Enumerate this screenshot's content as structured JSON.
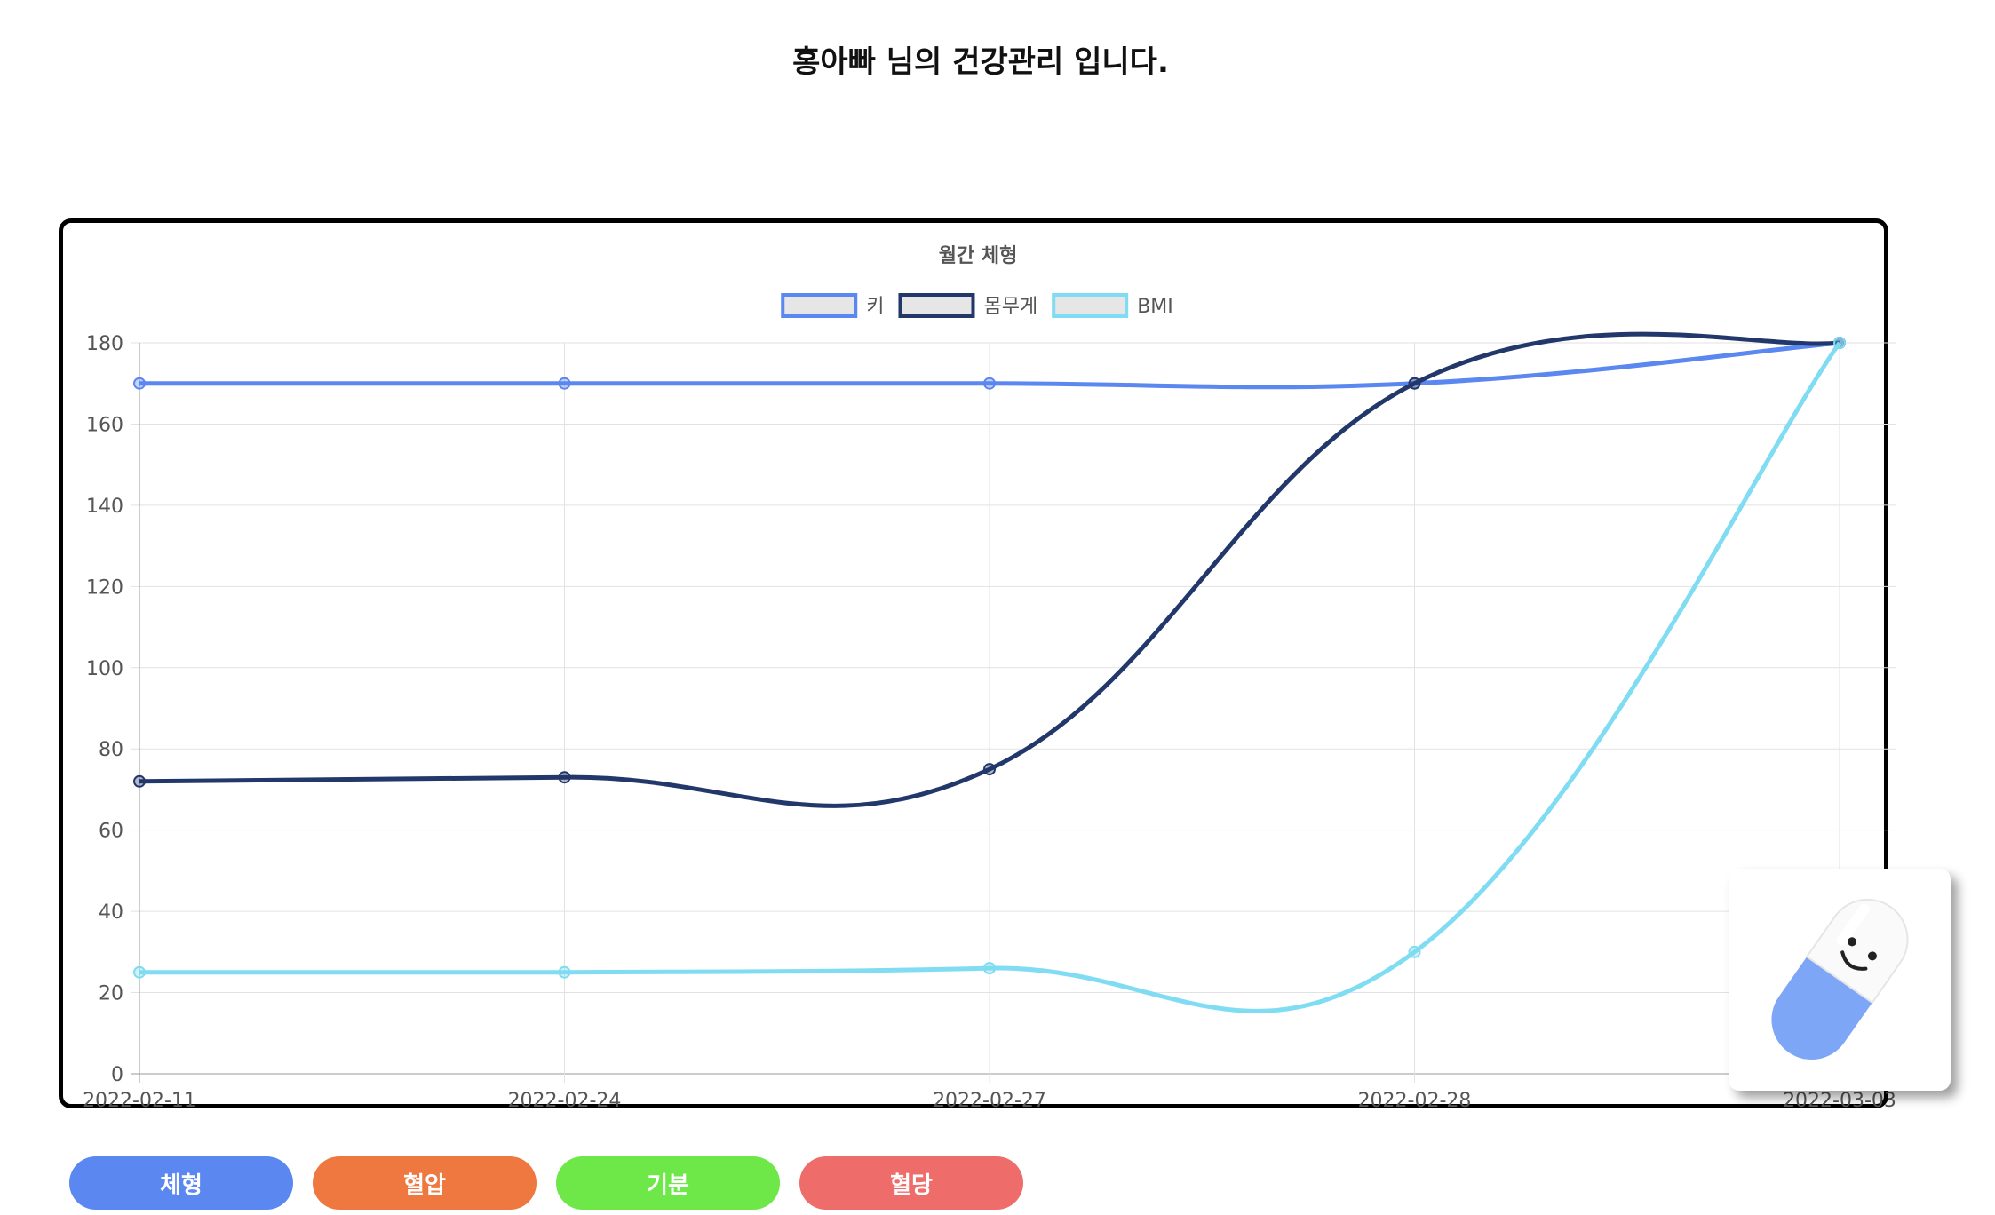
{
  "page": {
    "title": "홍아빠 님의 건강관리 입니다."
  },
  "chart_data": {
    "type": "line",
    "title": "월간 체형",
    "x": [
      "2022-02-11",
      "2022-02-24",
      "2022-02-27",
      "2022-02-28",
      "2022-03-03"
    ],
    "series": [
      {
        "name": "키",
        "values": [
          170,
          170,
          170,
          170,
          180
        ],
        "color": "#5b87f0"
      },
      {
        "name": "몸무게",
        "values": [
          72,
          73,
          75,
          170,
          180
        ],
        "color": "#22376a"
      },
      {
        "name": "BMI",
        "values": [
          25,
          25,
          26,
          30,
          180
        ],
        "color": "#7fdcf2"
      }
    ],
    "ylim": [
      0,
      180
    ],
    "yticks": [
      0,
      20,
      40,
      60,
      80,
      100,
      120,
      140,
      160,
      180
    ],
    "grid": true,
    "legend": "top-center",
    "curve": "smooth"
  },
  "buttons": [
    {
      "label": "체형",
      "color": "#5b87f0"
    },
    {
      "label": "혈압",
      "color": "#ef7840"
    },
    {
      "label": "기분",
      "color": "#6ee848"
    },
    {
      "label": "혈당",
      "color": "#ee6c6a"
    }
  ],
  "mascot": {
    "icon": "pill-mascot-icon"
  }
}
